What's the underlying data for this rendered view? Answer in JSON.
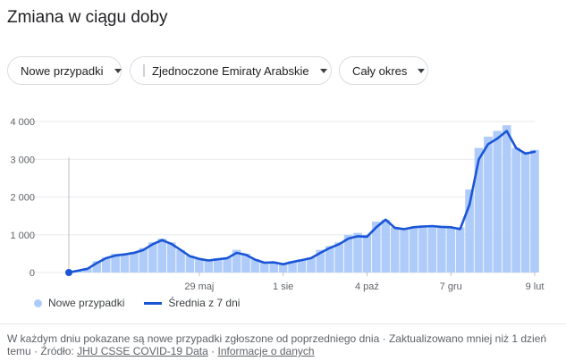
{
  "title": "Zmiana w ciągu doby",
  "filters": {
    "metric": "Nowe przypadki",
    "country": "Zjednoczone Emiraty Arabskie",
    "period": "Cały okres"
  },
  "colors": {
    "bars": "#aecbfa",
    "line": "#1a55d6",
    "flag_red": "#ce1126",
    "flag_green": "#00732f"
  },
  "icons": {
    "dropdown": "caret-down-icon",
    "country_flag": "uae-flag-icon"
  },
  "legend": {
    "bars_label": "Nowe przypadki",
    "line_label": "Średnia z 7 dni"
  },
  "footer": {
    "note": "W każdym dniu pokazane są nowe przypadki zgłoszone od poprzedniego dnia",
    "updated": "Zaktualizowano mniej niż 1 dzień temu",
    "source_label": "Źródło:",
    "source_link": "JHU CSSE COVID-19 Data",
    "info_link": "Informacje o danych"
  },
  "chart_data": {
    "type": "bar",
    "title": "",
    "xlabel": "",
    "ylabel": "",
    "ylim": [
      0,
      4000
    ],
    "y_ticks": [
      0,
      1000,
      2000,
      3000,
      4000
    ],
    "y_tick_labels": [
      "0",
      "1 000",
      "2 000",
      "3 000",
      "4 000"
    ],
    "x_tick_labels": [
      "29 maj",
      "1 sie",
      "4 paź",
      "7 gru",
      "9 lut"
    ],
    "x_tick_weeks": [
      14,
      23,
      32,
      41,
      50
    ],
    "grid": true,
    "legend_position": "bottom-left",
    "series": [
      {
        "name": "Nowe przypadki",
        "type": "bar",
        "values": [
          0,
          60,
          120,
          300,
          400,
          500,
          500,
          550,
          650,
          800,
          900,
          800,
          600,
          450,
          380,
          330,
          380,
          400,
          600,
          500,
          350,
          260,
          280,
          220,
          300,
          350,
          400,
          600,
          700,
          800,
          1000,
          1050,
          1000,
          1350,
          1400,
          1200,
          1150,
          1200,
          1250,
          1250,
          1200,
          1200,
          1200,
          2200,
          3300,
          3600,
          3750,
          3900,
          3300,
          3200,
          3250
        ]
      },
      {
        "name": "Średnia z 7 dni",
        "type": "line",
        "values": [
          0,
          50,
          100,
          250,
          380,
          450,
          480,
          520,
          600,
          750,
          860,
          760,
          600,
          430,
          360,
          320,
          350,
          380,
          520,
          470,
          340,
          260,
          270,
          220,
          280,
          330,
          380,
          520,
          650,
          750,
          900,
          960,
          950,
          1200,
          1400,
          1180,
          1150,
          1200,
          1220,
          1230,
          1210,
          1200,
          1150,
          1800,
          3000,
          3400,
          3550,
          3750,
          3300,
          3150,
          3200
        ]
      }
    ]
  }
}
